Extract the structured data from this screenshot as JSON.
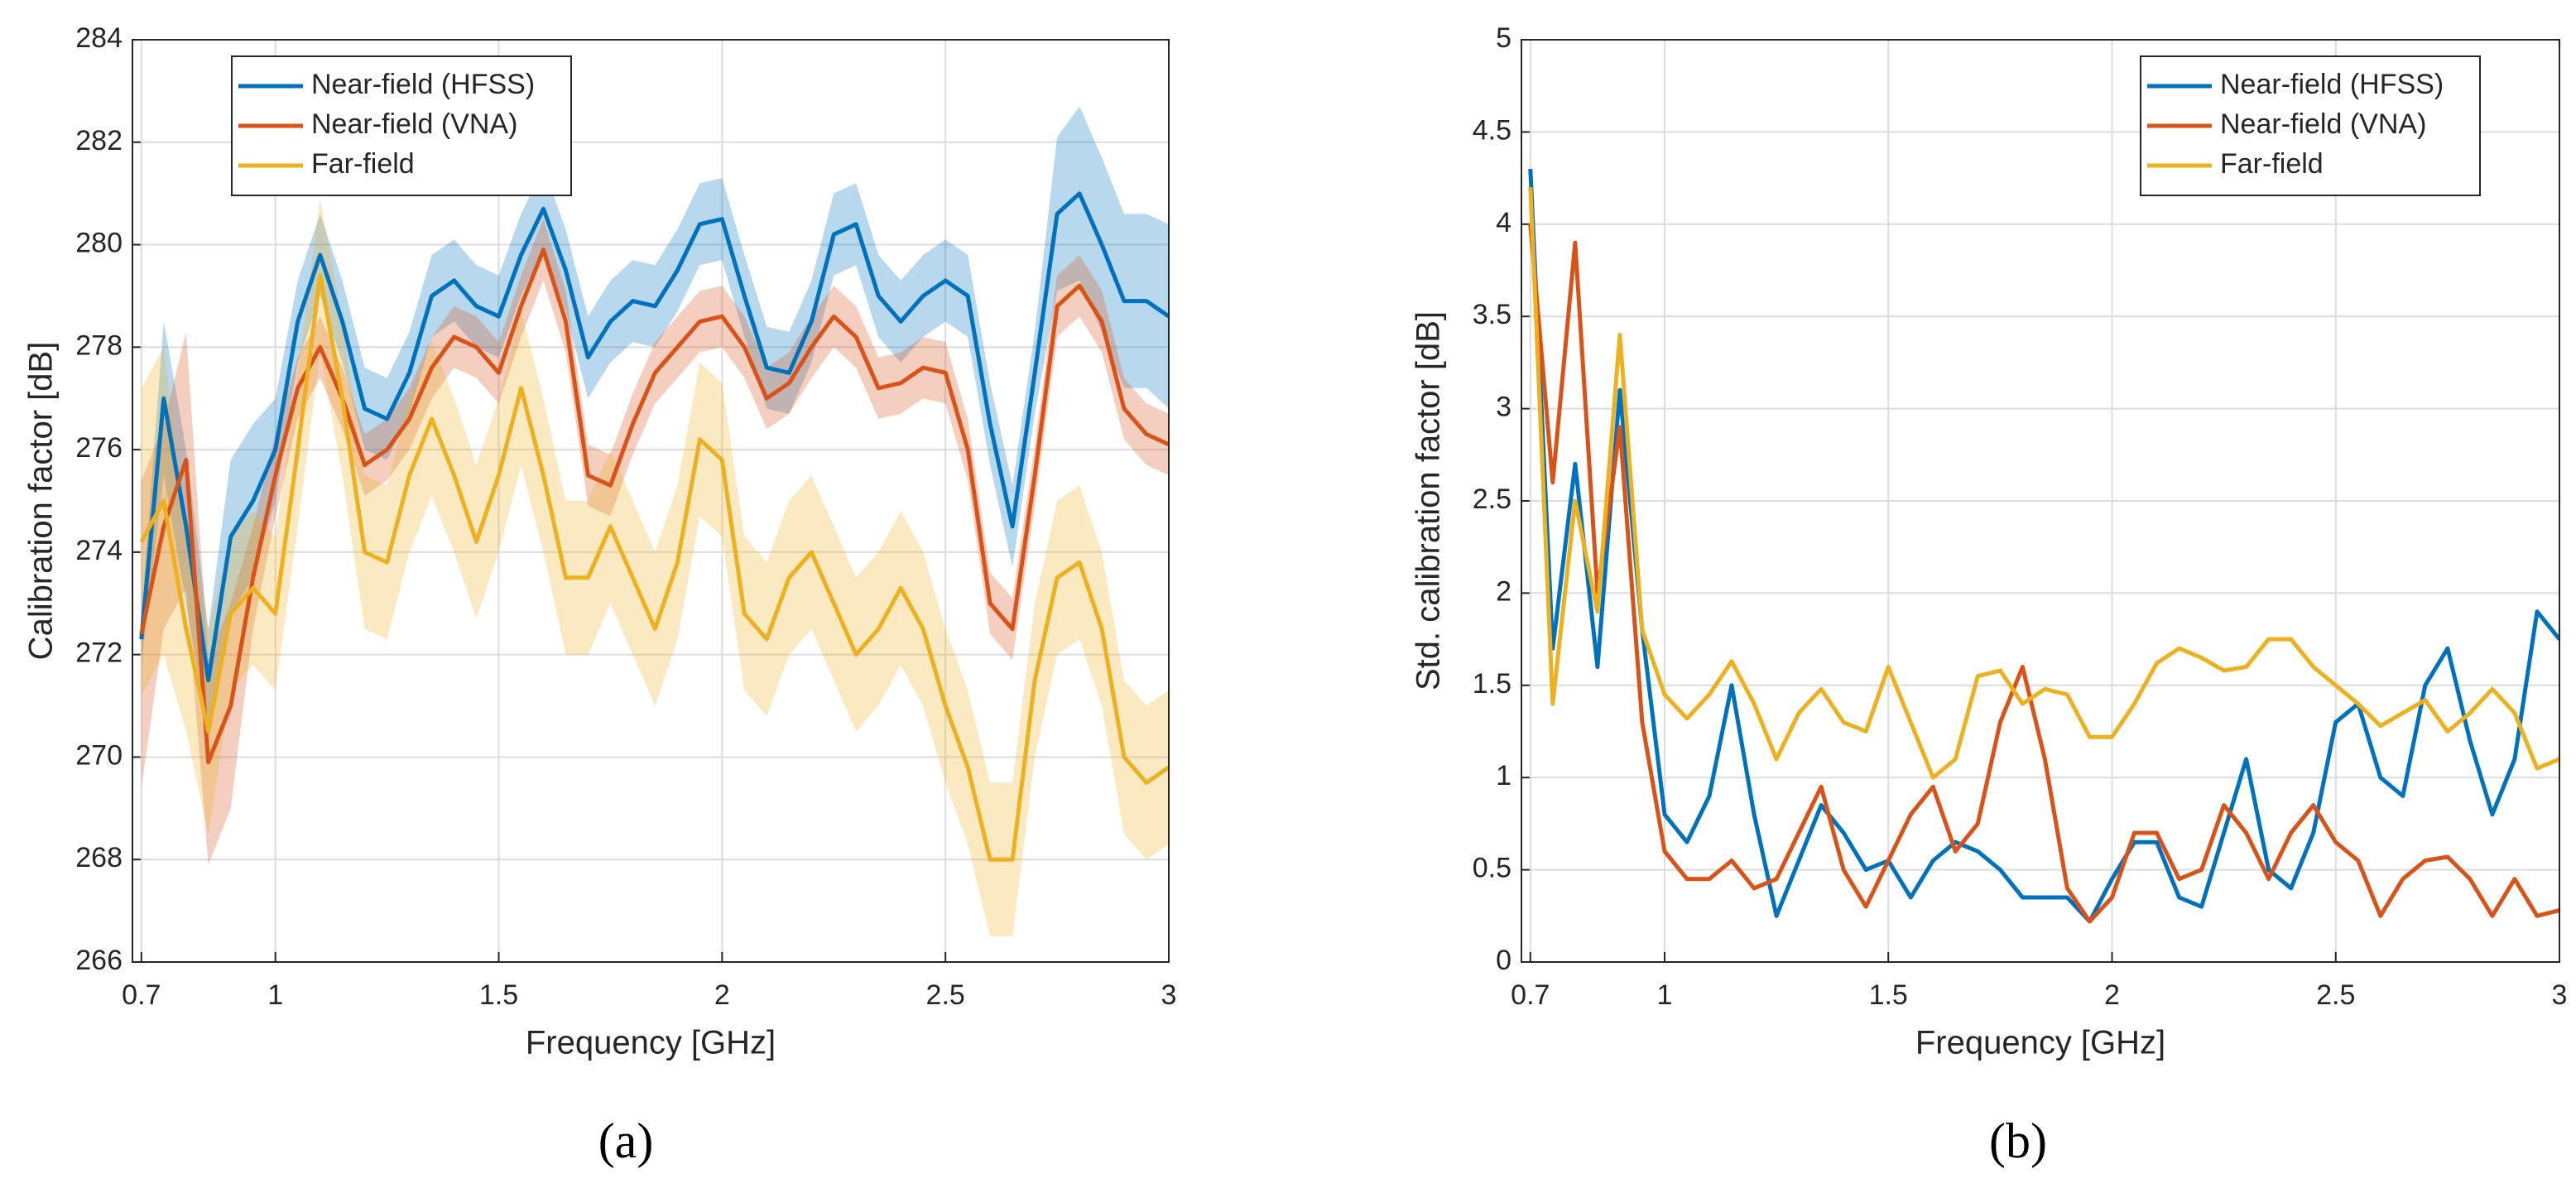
{
  "chart_data": [
    {
      "type": "line",
      "ylabel": "Calibration factor [dB]",
      "xlabel": "Frequency [GHz]",
      "caption": "(a)",
      "xlim": [
        0.68,
        3
      ],
      "xticks": [
        0.7,
        1,
        1.5,
        2,
        2.5,
        3
      ],
      "ylim": [
        266,
        284
      ],
      "yticks": [
        266,
        268,
        270,
        272,
        274,
        276,
        278,
        280,
        282,
        284
      ],
      "grid": true,
      "legend": "upper left",
      "x": [
        0.7,
        0.75,
        0.8,
        0.85,
        0.9,
        0.95,
        1,
        1.05,
        1.1,
        1.15,
        1.2,
        1.25,
        1.3,
        1.35,
        1.4,
        1.45,
        1.5,
        1.55,
        1.6,
        1.65,
        1.7,
        1.75,
        1.8,
        1.85,
        1.9,
        1.95,
        2,
        2.05,
        2.1,
        2.15,
        2.2,
        2.25,
        2.3,
        2.35,
        2.4,
        2.45,
        2.5,
        2.55,
        2.6,
        2.65,
        2.7,
        2.75,
        2.8,
        2.85,
        2.9,
        2.95,
        3
      ],
      "series": [
        {
          "name": "Near-field (HFSS)",
          "color": "#0072BD",
          "values": [
            272.3,
            277.0,
            274.5,
            271.5,
            274.3,
            275.0,
            276.0,
            278.5,
            279.8,
            278.5,
            276.8,
            276.6,
            277.5,
            279.0,
            279.3,
            278.8,
            278.6,
            279.8,
            280.7,
            279.5,
            277.8,
            278.5,
            278.9,
            278.8,
            279.5,
            280.4,
            280.5,
            279.0,
            277.6,
            277.5,
            278.5,
            280.2,
            280.4,
            279.0,
            278.5,
            279.0,
            279.3,
            279.0,
            276.5,
            274.5,
            277.5,
            280.6,
            281.0,
            280.0,
            278.9,
            278.9,
            278.6
          ],
          "lower": [
            271.8,
            275.5,
            273.0,
            270.5,
            272.8,
            273.5,
            275.0,
            277.7,
            279.0,
            277.7,
            276.0,
            275.8,
            276.7,
            278.2,
            278.5,
            278.0,
            277.8,
            279.0,
            279.9,
            278.7,
            277.0,
            277.7,
            278.1,
            278.0,
            278.7,
            279.6,
            279.7,
            278.2,
            276.8,
            276.7,
            277.7,
            279.4,
            279.6,
            278.2,
            277.7,
            278.2,
            278.5,
            278.2,
            275.7,
            273.7,
            276.7,
            279.1,
            279.3,
            278.3,
            277.2,
            277.2,
            276.8
          ],
          "upper": [
            272.8,
            278.5,
            276.0,
            272.5,
            275.8,
            276.5,
            277.0,
            279.3,
            280.6,
            279.3,
            277.6,
            277.4,
            278.3,
            279.8,
            280.1,
            279.6,
            279.4,
            280.6,
            281.5,
            280.3,
            278.6,
            279.3,
            279.7,
            279.6,
            280.3,
            281.2,
            281.3,
            279.8,
            278.4,
            278.3,
            279.3,
            281.0,
            281.2,
            279.8,
            279.3,
            279.8,
            280.1,
            279.8,
            277.3,
            275.3,
            278.3,
            282.1,
            282.7,
            281.7,
            280.6,
            280.6,
            280.4
          ]
        },
        {
          "name": "Near-field (VNA)",
          "color": "#D95319",
          "values": [
            272.4,
            274.5,
            275.8,
            269.9,
            271.0,
            273.5,
            275.5,
            277.2,
            278.0,
            277.0,
            275.7,
            276.0,
            276.6,
            277.6,
            278.2,
            278.0,
            277.5,
            278.8,
            279.9,
            278.5,
            275.5,
            275.3,
            276.5,
            277.5,
            278.0,
            278.5,
            278.6,
            278.0,
            277.0,
            277.3,
            278.0,
            278.6,
            278.2,
            277.2,
            277.3,
            277.6,
            277.5,
            276.0,
            273.0,
            272.5,
            275.5,
            278.8,
            279.2,
            278.5,
            276.8,
            276.3,
            276.1
          ],
          "lower": [
            269.4,
            272.5,
            273.3,
            267.9,
            269.0,
            272.5,
            274.7,
            276.6,
            277.4,
            276.4,
            275.1,
            275.4,
            276.0,
            277.0,
            277.6,
            277.4,
            276.9,
            278.2,
            279.3,
            277.9,
            274.9,
            274.7,
            275.9,
            276.9,
            277.4,
            277.9,
            278.0,
            277.4,
            276.4,
            276.7,
            277.4,
            278.0,
            277.6,
            276.6,
            276.7,
            277.0,
            276.9,
            275.4,
            272.4,
            271.9,
            274.9,
            278.2,
            278.6,
            277.9,
            276.2,
            275.7,
            275.5
          ],
          "upper": [
            275.4,
            276.5,
            278.3,
            271.9,
            273.0,
            274.5,
            276.3,
            277.8,
            278.6,
            277.6,
            276.3,
            276.6,
            277.2,
            278.2,
            278.8,
            278.6,
            278.1,
            279.4,
            280.5,
            279.1,
            276.1,
            275.9,
            277.1,
            278.1,
            278.6,
            279.1,
            279.2,
            278.6,
            277.6,
            277.9,
            278.6,
            279.2,
            278.8,
            277.8,
            277.9,
            278.2,
            278.1,
            276.6,
            273.6,
            273.1,
            276.1,
            279.4,
            279.8,
            279.1,
            277.4,
            276.9,
            276.7
          ]
        },
        {
          "name": "Far-field",
          "color": "#EDB120",
          "values": [
            274.2,
            275.0,
            272.5,
            270.5,
            272.8,
            273.3,
            272.8,
            276.0,
            279.4,
            277.0,
            274.0,
            273.8,
            275.5,
            276.6,
            275.5,
            274.2,
            275.5,
            277.2,
            275.5,
            273.5,
            273.5,
            274.5,
            273.5,
            272.5,
            273.8,
            276.2,
            275.8,
            272.8,
            272.3,
            273.5,
            274.0,
            273.0,
            272.0,
            272.5,
            273.3,
            272.5,
            271.0,
            269.8,
            268.0,
            268.0,
            271.5,
            273.5,
            273.8,
            272.5,
            270.0,
            269.5,
            269.8
          ],
          "lower": [
            271.2,
            272.0,
            270.5,
            268.5,
            271.3,
            271.8,
            271.3,
            274.5,
            277.9,
            275.5,
            272.5,
            272.3,
            274.0,
            275.1,
            274.0,
            272.7,
            274.0,
            275.7,
            274.0,
            272.0,
            272.0,
            273.0,
            272.0,
            271.0,
            272.3,
            274.7,
            274.3,
            271.3,
            270.8,
            272.0,
            272.5,
            271.5,
            270.5,
            271.0,
            271.8,
            271.0,
            269.5,
            268.3,
            266.5,
            266.5,
            270.0,
            272.0,
            272.3,
            271.0,
            268.5,
            268.0,
            268.3
          ],
          "upper": [
            277.2,
            278.0,
            274.5,
            272.5,
            274.3,
            274.8,
            274.3,
            277.5,
            280.9,
            278.5,
            275.5,
            275.3,
            277.0,
            278.1,
            277.0,
            275.7,
            277.0,
            278.7,
            277.0,
            275.0,
            275.0,
            276.0,
            275.0,
            274.0,
            275.3,
            277.7,
            277.3,
            274.3,
            273.8,
            275.0,
            275.5,
            274.5,
            273.5,
            274.0,
            274.8,
            274.0,
            272.5,
            271.3,
            269.5,
            269.5,
            273.0,
            275.0,
            275.3,
            274.0,
            271.5,
            271.0,
            271.3
          ]
        }
      ]
    },
    {
      "type": "line",
      "ylabel": "Std. calibration factor [dB]",
      "xlabel": "Frequency [GHz]",
      "caption": "(b)",
      "xlim": [
        0.68,
        3
      ],
      "xticks": [
        0.7,
        1,
        1.5,
        2,
        2.5,
        3
      ],
      "ylim": [
        0,
        5
      ],
      "yticks": [
        0,
        0.5,
        1,
        1.5,
        2,
        2.5,
        3,
        3.5,
        4,
        4.5,
        5
      ],
      "grid": true,
      "legend": "upper right",
      "x": [
        0.7,
        0.75,
        0.8,
        0.85,
        0.9,
        0.95,
        1,
        1.05,
        1.1,
        1.15,
        1.2,
        1.25,
        1.3,
        1.35,
        1.4,
        1.45,
        1.5,
        1.55,
        1.6,
        1.65,
        1.7,
        1.75,
        1.8,
        1.85,
        1.9,
        1.95,
        2,
        2.05,
        2.1,
        2.15,
        2.2,
        2.25,
        2.3,
        2.35,
        2.4,
        2.45,
        2.5,
        2.55,
        2.6,
        2.65,
        2.7,
        2.75,
        2.8,
        2.85,
        2.9,
        2.95,
        3
      ],
      "series": [
        {
          "name": "Near-field (HFSS)",
          "color": "#0072BD",
          "values": [
            4.3,
            1.7,
            2.7,
            1.6,
            3.1,
            1.8,
            0.8,
            0.65,
            0.9,
            1.5,
            0.8,
            0.25,
            0.55,
            0.85,
            0.7,
            0.5,
            0.55,
            0.35,
            0.55,
            0.65,
            0.6,
            0.5,
            0.35,
            0.35,
            0.35,
            0.22,
            0.45,
            0.65,
            0.65,
            0.35,
            0.3,
            0.7,
            1.1,
            0.5,
            0.4,
            0.7,
            1.3,
            1.4,
            1.0,
            0.9,
            1.5,
            1.7,
            1.2,
            0.8,
            1.1,
            1.9,
            1.75
          ]
        },
        {
          "name": "Near-field (VNA)",
          "color": "#D95319",
          "values": [
            4.0,
            2.6,
            3.9,
            2.0,
            2.9,
            1.3,
            0.6,
            0.45,
            0.45,
            0.55,
            0.4,
            0.45,
            0.7,
            0.95,
            0.5,
            0.3,
            0.55,
            0.8,
            0.95,
            0.6,
            0.75,
            1.3,
            1.6,
            1.1,
            0.4,
            0.22,
            0.35,
            0.7,
            0.7,
            0.45,
            0.5,
            0.85,
            0.7,
            0.45,
            0.7,
            0.85,
            0.65,
            0.55,
            0.25,
            0.45,
            0.55,
            0.57,
            0.45,
            0.25,
            0.45,
            0.25,
            0.28
          ]
        },
        {
          "name": "Far-field",
          "color": "#EDB120",
          "values": [
            4.2,
            1.4,
            2.5,
            1.9,
            3.4,
            1.8,
            1.45,
            1.32,
            1.45,
            1.63,
            1.4,
            1.1,
            1.35,
            1.48,
            1.3,
            1.25,
            1.6,
            1.3,
            1.0,
            1.1,
            1.55,
            1.58,
            1.4,
            1.48,
            1.45,
            1.22,
            1.22,
            1.4,
            1.62,
            1.7,
            1.65,
            1.58,
            1.6,
            1.75,
            1.75,
            1.6,
            1.5,
            1.4,
            1.28,
            1.35,
            1.42,
            1.25,
            1.35,
            1.48,
            1.35,
            1.05,
            1.1
          ]
        }
      ]
    }
  ]
}
